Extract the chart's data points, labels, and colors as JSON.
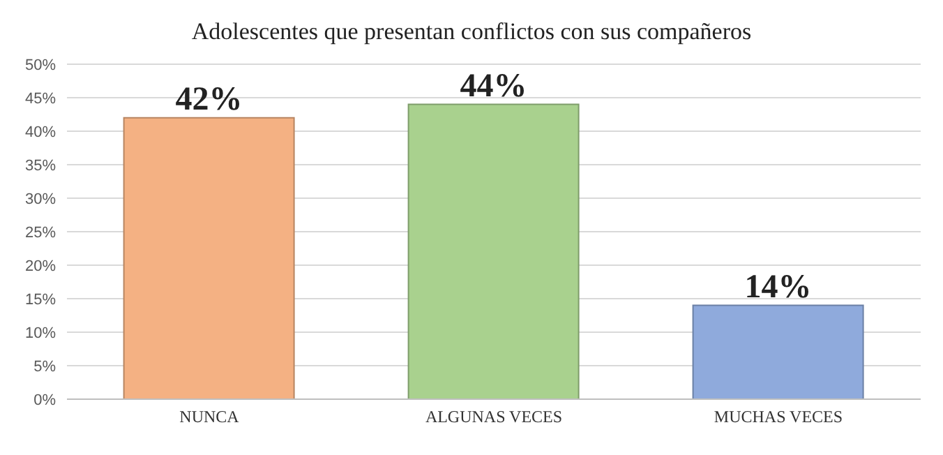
{
  "chart_data": {
    "type": "bar",
    "title": "Adolescentes que presentan conflictos con sus compañeros",
    "categories": [
      "NUNCA",
      "ALGUNAS VECES",
      "MUCHAS VECES"
    ],
    "values": [
      42,
      44,
      14
    ],
    "colors": [
      "#f4b183",
      "#a9d18e",
      "#8faadc"
    ],
    "value_labels": [
      "42%",
      "44%",
      "14%"
    ],
    "ylim": [
      0,
      50
    ],
    "yticks": [
      {
        "value": 0,
        "label": "0%"
      },
      {
        "value": 5,
        "label": "5%"
      },
      {
        "value": 10,
        "label": "10%"
      },
      {
        "value": 15,
        "label": "15%"
      },
      {
        "value": 20,
        "label": "20%"
      },
      {
        "value": 25,
        "label": "25%"
      },
      {
        "value": 30,
        "label": "30%"
      },
      {
        "value": 35,
        "label": "35%"
      },
      {
        "value": 40,
        "label": "40%"
      },
      {
        "value": 45,
        "label": "45%"
      },
      {
        "value": 50,
        "label": "50%"
      }
    ],
    "grid": "y"
  }
}
